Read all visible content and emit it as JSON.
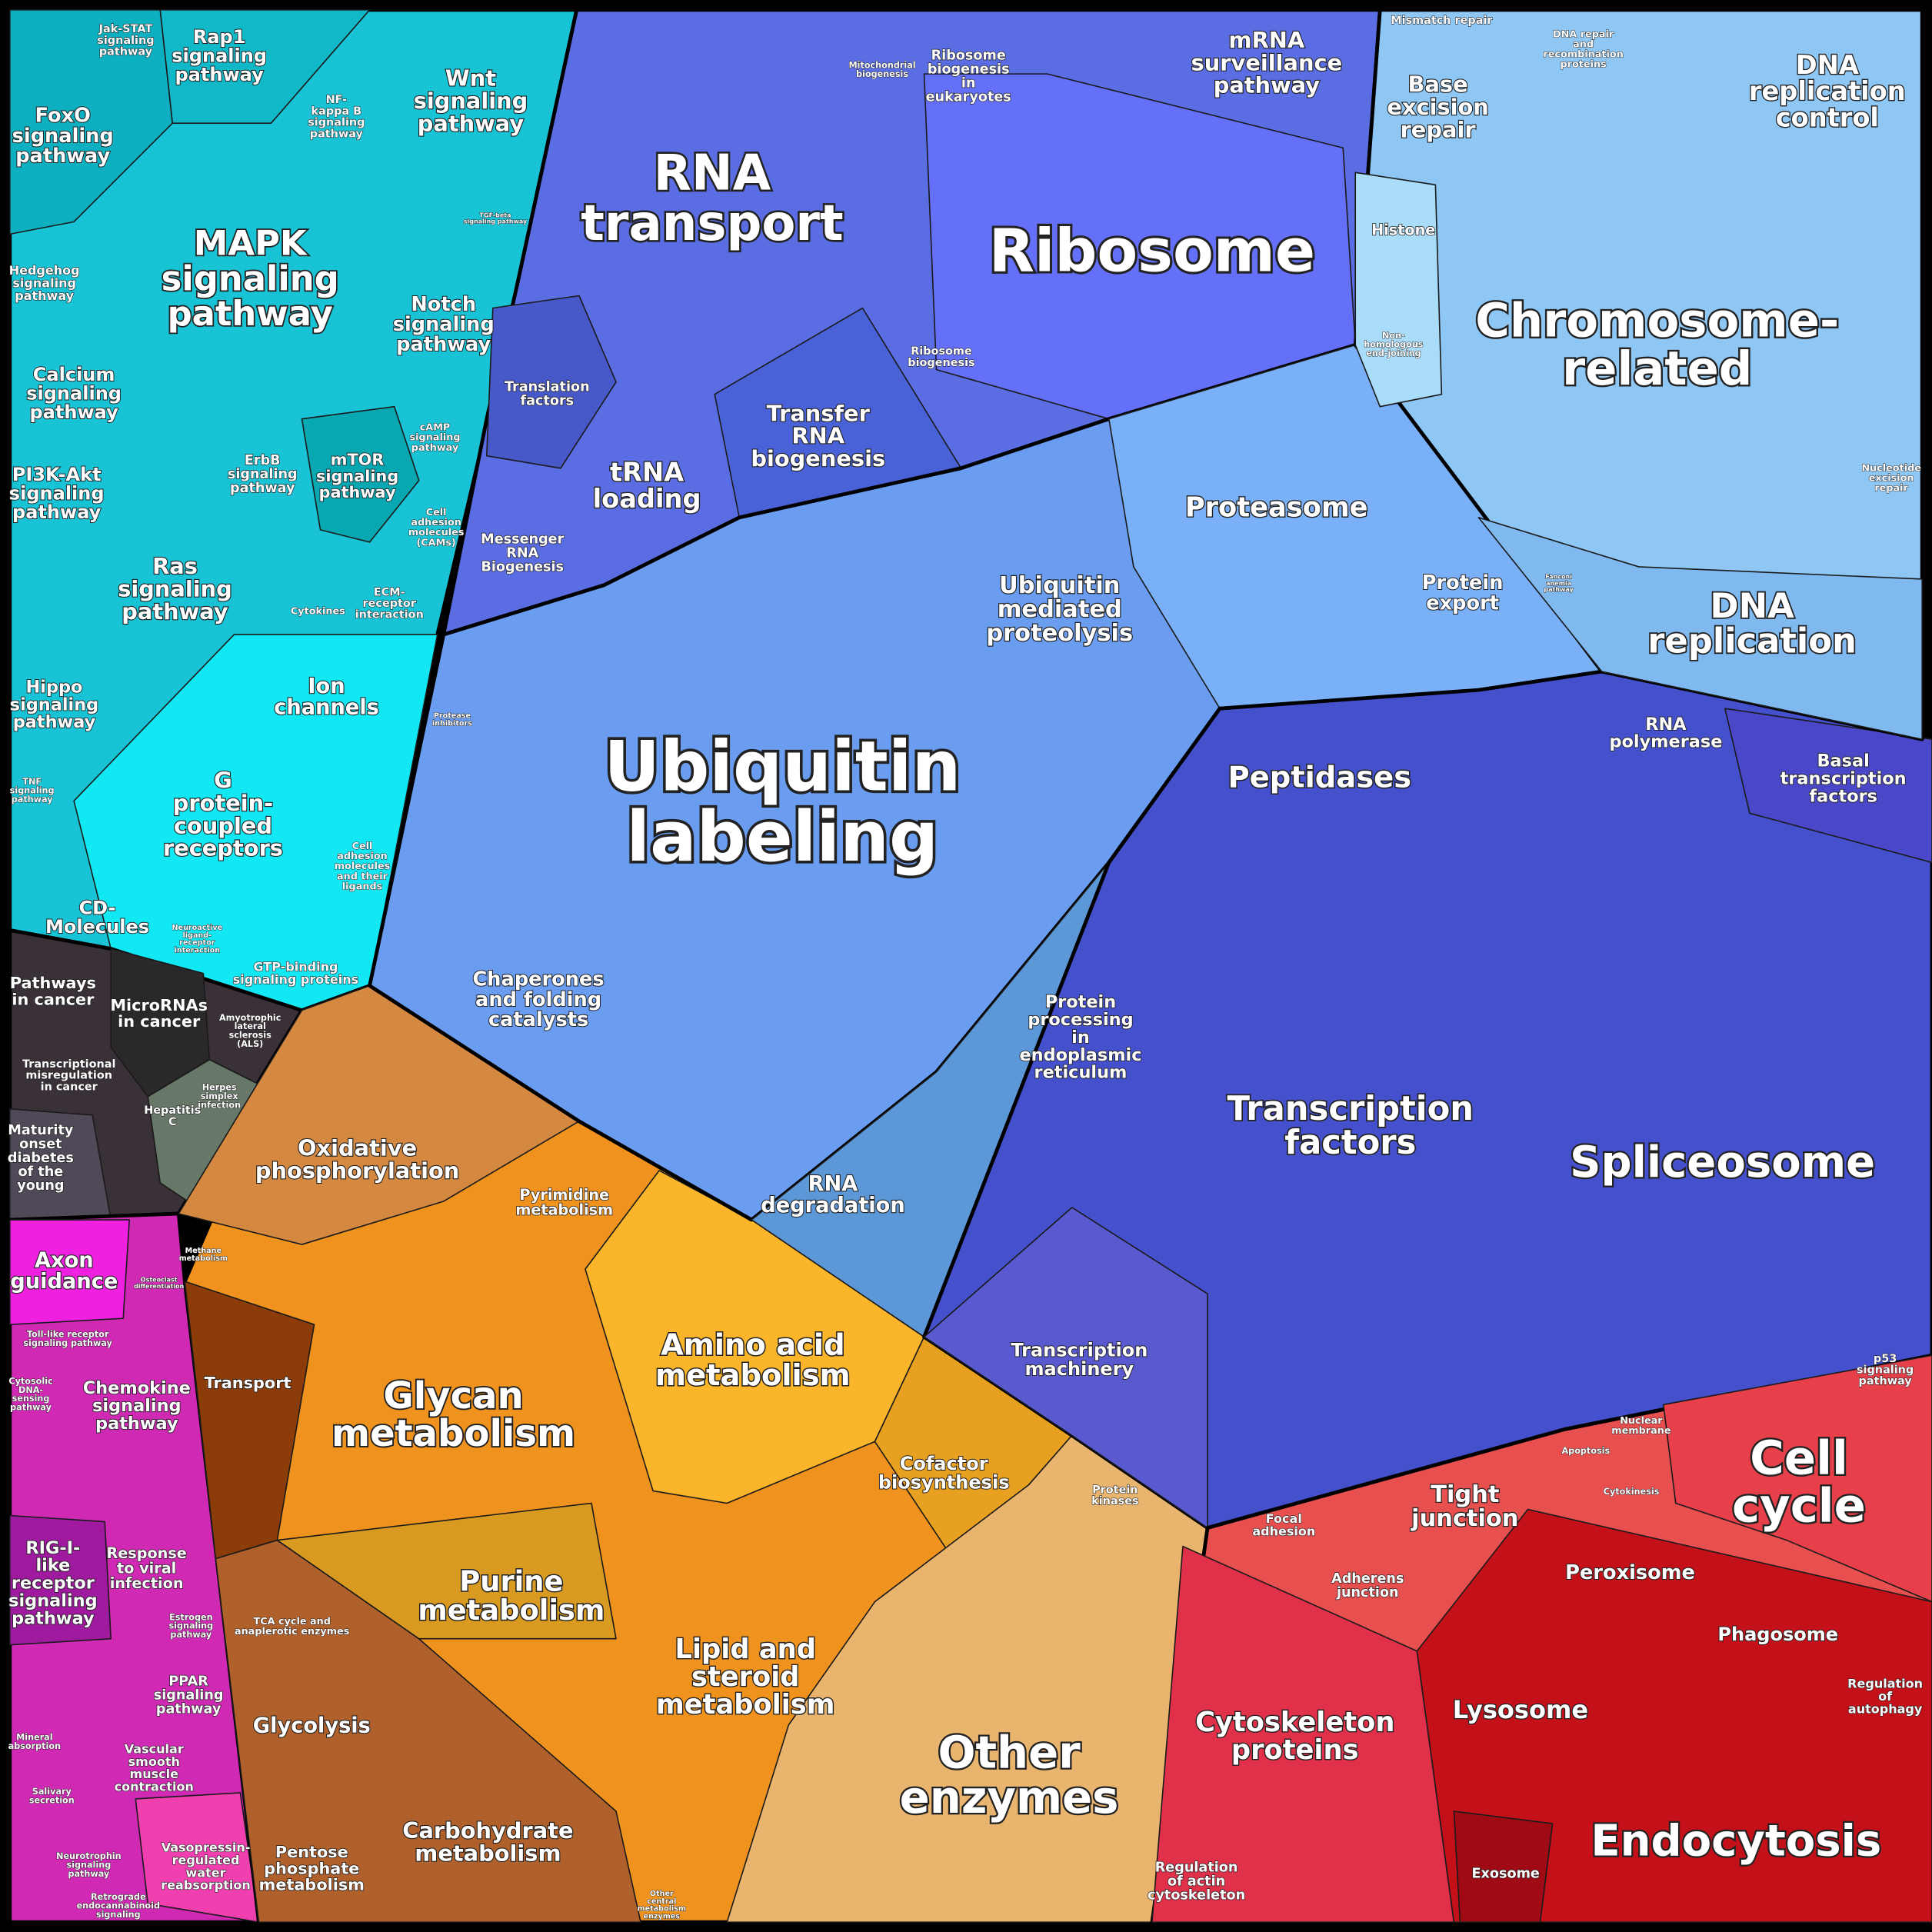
{
  "regions": [
    {
      "lines": [
        "RNA",
        "transport"
      ]
    },
    {
      "lines": [
        "Ribosome"
      ]
    },
    {
      "lines": [
        "mRNA",
        "surveillance",
        "pathway"
      ]
    },
    {
      "lines": [
        "Ribosome",
        "biogenesis",
        "in",
        "eukaryotes"
      ]
    },
    {
      "lines": [
        "Mitochondrial",
        "biogenesis"
      ]
    },
    {
      "lines": [
        "Translation",
        "factors"
      ]
    },
    {
      "lines": [
        "tRNA",
        "loading"
      ]
    },
    {
      "lines": [
        "Transfer",
        "RNA",
        "biogenesis"
      ]
    },
    {
      "lines": [
        "Messenger",
        "RNA",
        "Biogenesis"
      ]
    },
    {
      "lines": [
        "Ribosome",
        "biogenesis"
      ]
    },
    {
      "lines": [
        "Ubiquitin",
        "labeling"
      ]
    },
    {
      "lines": [
        "Ubiquitin",
        "mediated",
        "proteolysis"
      ]
    },
    {
      "lines": [
        "Proteasome"
      ]
    },
    {
      "lines": [
        "Protein",
        "export"
      ]
    },
    {
      "lines": [
        "Peptidases"
      ]
    },
    {
      "lines": [
        "Chaperones",
        "and folding",
        "catalysts"
      ]
    },
    {
      "lines": [
        "Protein",
        "processing",
        "in",
        "endoplasmic",
        "reticulum"
      ]
    },
    {
      "lines": [
        "RNA",
        "degradation"
      ]
    },
    {
      "lines": [
        "Protease",
        "inhibitors"
      ]
    },
    {
      "lines": [
        "Transcription",
        "factors"
      ]
    },
    {
      "lines": [
        "Spliceosome"
      ]
    },
    {
      "lines": [
        "RNA",
        "polymerase"
      ]
    },
    {
      "lines": [
        "Basal",
        "transcription",
        "factors"
      ]
    },
    {
      "lines": [
        "Transcription",
        "machinery"
      ]
    },
    {
      "lines": [
        "Chromosome-",
        "related"
      ]
    },
    {
      "lines": [
        "DNA",
        "replication",
        "control"
      ]
    },
    {
      "lines": [
        "Base",
        "excision",
        "repair"
      ]
    },
    {
      "lines": [
        "Mismatch repair"
      ]
    },
    {
      "lines": [
        "DNA repair",
        "and",
        "recombination",
        "proteins"
      ]
    },
    {
      "lines": [
        "Histone"
      ]
    },
    {
      "lines": [
        "Non-",
        "homologous",
        "end-joining"
      ]
    },
    {
      "lines": [
        "DNA",
        "replication"
      ]
    },
    {
      "lines": [
        "Nucleotide",
        "excision",
        "repair"
      ]
    },
    {
      "lines": [
        "Fanconi",
        "anemia",
        "pathway"
      ]
    },
    {
      "lines": [
        "MAPK",
        "signaling",
        "pathway"
      ]
    },
    {
      "lines": [
        "Rap1",
        "signaling",
        "pathway"
      ]
    },
    {
      "lines": [
        "Wnt",
        "signaling",
        "pathway"
      ]
    },
    {
      "lines": [
        "Jak-STAT",
        "signaling",
        "pathway"
      ]
    },
    {
      "lines": [
        "FoxO",
        "signaling",
        "pathway"
      ]
    },
    {
      "lines": [
        "NF-",
        "kappa B",
        "signaling",
        "pathway"
      ]
    },
    {
      "lines": [
        "TGF-beta",
        "signaling pathway"
      ]
    },
    {
      "lines": [
        "Hedgehog",
        "signaling",
        "pathway"
      ]
    },
    {
      "lines": [
        "Notch",
        "signaling",
        "pathway"
      ]
    },
    {
      "lines": [
        "Calcium",
        "signaling",
        "pathway"
      ]
    },
    {
      "lines": [
        "PI3K-Akt",
        "signaling",
        "pathway"
      ]
    },
    {
      "lines": [
        "ErbB",
        "signaling",
        "pathway"
      ]
    },
    {
      "lines": [
        "mTOR",
        "signaling",
        "pathway"
      ]
    },
    {
      "lines": [
        "cAMP",
        "signaling",
        "pathway"
      ]
    },
    {
      "lines": [
        "Ras",
        "signaling",
        "pathway"
      ]
    },
    {
      "lines": [
        "Cell",
        "adhesion",
        "molecules",
        "(CAMs)"
      ]
    },
    {
      "lines": [
        "Cytokines"
      ]
    },
    {
      "lines": [
        "ECM-",
        "receptor",
        "interaction"
      ]
    },
    {
      "lines": [
        "Ion",
        "channels"
      ]
    },
    {
      "lines": [
        "Hippo",
        "signaling",
        "pathway"
      ]
    },
    {
      "lines": [
        "G",
        "protein-",
        "coupled",
        "receptors"
      ]
    },
    {
      "lines": [
        "TNF",
        "signaling",
        "pathway"
      ]
    },
    {
      "lines": [
        "Cell",
        "adhesion",
        "molecules",
        "and their",
        "ligands"
      ]
    },
    {
      "lines": [
        "CD-",
        "Molecules"
      ]
    },
    {
      "lines": [
        "Neuroactive",
        "ligand-",
        "receptor",
        "interaction"
      ]
    },
    {
      "lines": [
        "GTP-binding",
        "signaling proteins"
      ]
    },
    {
      "lines": [
        "Pathways",
        "in cancer"
      ]
    },
    {
      "lines": [
        "MicroRNAs",
        "in cancer"
      ]
    },
    {
      "lines": [
        "Amyotrophic",
        "lateral",
        "sclerosis",
        "(ALS)"
      ]
    },
    {
      "lines": [
        "Transcriptional",
        "misregulation",
        "in cancer"
      ]
    },
    {
      "lines": [
        "Herpes",
        "simplex",
        "infection"
      ]
    },
    {
      "lines": [
        "Hepatitis",
        "C"
      ]
    },
    {
      "lines": [
        "Maturity",
        "onset",
        "diabetes",
        "of the",
        "young"
      ]
    },
    {
      "lines": [
        "Axon",
        "guidance"
      ]
    },
    {
      "lines": [
        "Toll-like receptor",
        "signaling pathway"
      ]
    },
    {
      "lines": [
        "Cytosolic",
        "DNA-",
        "sensing",
        "pathway"
      ]
    },
    {
      "lines": [
        "Chemokine",
        "signaling",
        "pathway"
      ]
    },
    {
      "lines": [
        "RIG-I-",
        "like",
        "receptor",
        "signaling",
        "pathway"
      ]
    },
    {
      "lines": [
        "Response",
        "to viral",
        "infection"
      ]
    },
    {
      "lines": [
        "Estrogen",
        "signaling",
        "pathway"
      ]
    },
    {
      "lines": [
        "PPAR",
        "signaling",
        "pathway"
      ]
    },
    {
      "lines": [
        "Mineral",
        "absorption"
      ]
    },
    {
      "lines": [
        "Vascular",
        "smooth",
        "muscle",
        "contraction"
      ]
    },
    {
      "lines": [
        "Salivary",
        "secretion"
      ]
    },
    {
      "lines": [
        "Vasopressin-",
        "regulated",
        "water",
        "reabsorption"
      ]
    },
    {
      "lines": [
        "Neurotrophin",
        "signaling",
        "pathway"
      ]
    },
    {
      "lines": [
        "Retrograde",
        "endocannabinoid",
        "signaling"
      ]
    },
    {
      "lines": [
        "Oxidative",
        "phosphorylation"
      ]
    },
    {
      "lines": [
        "Pyrimidine",
        "metabolism"
      ]
    },
    {
      "lines": [
        "Glycan",
        "metabolism"
      ]
    },
    {
      "lines": [
        "Amino acid",
        "metabolism"
      ]
    },
    {
      "lines": [
        "Transport"
      ]
    },
    {
      "lines": [
        "Cofactor",
        "biosynthesis"
      ]
    },
    {
      "lines": [
        "Purine",
        "metabolism"
      ]
    },
    {
      "lines": [
        "Lipid and",
        "steroid",
        "metabolism"
      ]
    },
    {
      "lines": [
        "TCA cycle and",
        "anaplerotic enzymes"
      ]
    },
    {
      "lines": [
        "Glycolysis"
      ]
    },
    {
      "lines": [
        "Carbohydrate",
        "metabolism"
      ]
    },
    {
      "lines": [
        "Pentose",
        "phosphate",
        "metabolism"
      ]
    },
    {
      "lines": [
        "Other",
        "central",
        "metabolism",
        "enzymes"
      ]
    },
    {
      "lines": [
        "Other",
        "enzymes"
      ]
    },
    {
      "lines": [
        "Protein",
        "kinases"
      ]
    },
    {
      "lines": [
        "Methane",
        "metabolism"
      ]
    },
    {
      "lines": [
        "Cell",
        "cycle"
      ]
    },
    {
      "lines": [
        "Tight",
        "junction"
      ]
    },
    {
      "lines": [
        "p53",
        "signaling",
        "pathway"
      ]
    },
    {
      "lines": [
        "Nuclear",
        "membrane"
      ]
    },
    {
      "lines": [
        "Apoptosis"
      ]
    },
    {
      "lines": [
        "Cytokinesis"
      ]
    },
    {
      "lines": [
        "Focal",
        "adhesion"
      ]
    },
    {
      "lines": [
        "Adherens",
        "junction"
      ]
    },
    {
      "lines": [
        "Peroxisome"
      ]
    },
    {
      "lines": [
        "Phagosome"
      ]
    },
    {
      "lines": [
        "Regulation",
        "of",
        "autophagy"
      ]
    },
    {
      "lines": [
        "Lysosome"
      ]
    },
    {
      "lines": [
        "Cytoskeleton",
        "proteins"
      ]
    },
    {
      "lines": [
        "Endocytosis"
      ]
    },
    {
      "lines": [
        "Exosome"
      ]
    },
    {
      "lines": [
        "Regulation",
        "of actin",
        "cytoskeleton"
      ]
    },
    {
      "lines": [
        "Osteoclast",
        "differentiation"
      ]
    }
  ]
}
